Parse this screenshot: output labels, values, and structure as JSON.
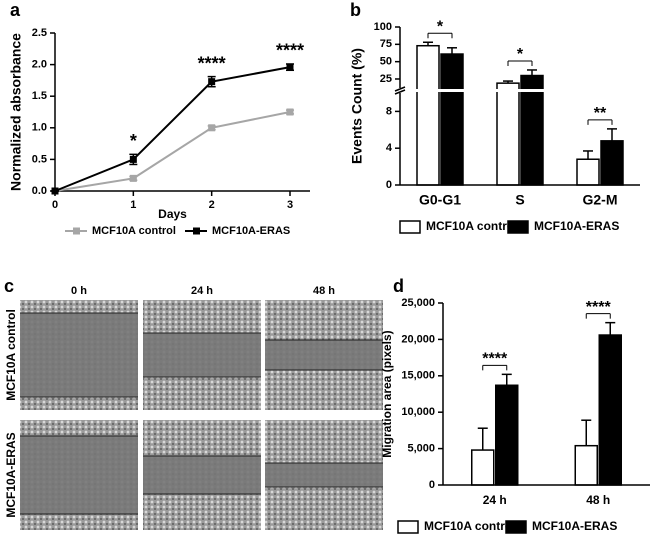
{
  "chart_data": [
    {
      "type": "line",
      "panel": "a",
      "ylabel": "Normalized absorbance",
      "xlabel": "Days",
      "x": [
        0,
        1,
        2,
        3
      ],
      "xlim": [
        0,
        3
      ],
      "xticks": [
        0,
        1,
        2,
        3
      ],
      "ylim": [
        0,
        2.5
      ],
      "yticks": [
        {
          "value": 0,
          "label": "0.0"
        },
        {
          "value": 0.5,
          "label": "0.5"
        },
        {
          "value": 1,
          "label": "1.0"
        },
        {
          "value": 1.5,
          "label": "1.5"
        },
        {
          "value": 2,
          "label": "2.0"
        },
        {
          "value": 2.5,
          "label": "2.5"
        }
      ],
      "series": [
        {
          "name": "MCF10A control",
          "color": "#a6a6a6",
          "values": [
            0,
            0.2,
            1.0,
            1.25
          ],
          "errors": [
            0,
            0.03,
            0.03,
            0.03
          ]
        },
        {
          "name": "MCF10A-ERAS",
          "color": "#000000",
          "values": [
            0,
            0.5,
            1.73,
            1.96
          ],
          "errors": [
            0,
            0.08,
            0.08,
            0.05
          ]
        }
      ],
      "annotations": [
        {
          "text": "*",
          "x": 1
        },
        {
          "text": "****",
          "x": 2
        },
        {
          "text": "****",
          "x": 3
        }
      ]
    },
    {
      "type": "bar",
      "panel": "b",
      "ylabel": "Events Count (%)",
      "categories": [
        "G0-G1",
        "S",
        "G2-M"
      ],
      "ylim": [
        0,
        100
      ],
      "axis_break": [
        10,
        12
      ],
      "yticks": [
        0,
        4,
        8,
        25,
        50,
        75,
        100
      ],
      "series": [
        {
          "name": "MCF10A control",
          "color": "#ffffff",
          "values": [
            73,
            19,
            2.8
          ],
          "errors": [
            5,
            3,
            0.9
          ]
        },
        {
          "name": "MCF10A-ERAS",
          "color": "#000000",
          "values": [
            61,
            30,
            4.8
          ],
          "errors": [
            9,
            8,
            1.3
          ]
        }
      ],
      "annotations": [
        {
          "text": "*",
          "category": "G0-G1"
        },
        {
          "text": "*",
          "category": "S"
        },
        {
          "text": "**",
          "category": "G2-M"
        }
      ]
    },
    {
      "type": "bar",
      "panel": "d",
      "ylabel": "Migration area (pixels)",
      "categories": [
        "24 h",
        "48 h"
      ],
      "ylim": [
        0,
        25000
      ],
      "yticks": [
        0,
        {
          "value": 5000,
          "label": "5,000"
        },
        {
          "value": 10000,
          "label": "10,000"
        },
        {
          "value": 15000,
          "label": "15,000"
        },
        {
          "value": 20000,
          "label": "20,000"
        },
        {
          "value": 25000,
          "label": "25,000"
        }
      ],
      "series": [
        {
          "name": "MCF10A control",
          "color": "#ffffff",
          "values": [
            4800,
            5400
          ],
          "errors": [
            3000,
            3500
          ]
        },
        {
          "name": "MCF10A-ERAS",
          "color": "#000000",
          "values": [
            13700,
            20600
          ],
          "errors": [
            1500,
            1700
          ]
        }
      ],
      "annotations": [
        {
          "text": "****",
          "category": "24 h"
        },
        {
          "text": "****",
          "category": "48 h"
        }
      ]
    }
  ],
  "image_panel": {
    "panel": "c",
    "columns": [
      "0 h",
      "24 h",
      "48 h"
    ],
    "rows": [
      "MCF10A control",
      "MCF10A-ERAS"
    ]
  }
}
